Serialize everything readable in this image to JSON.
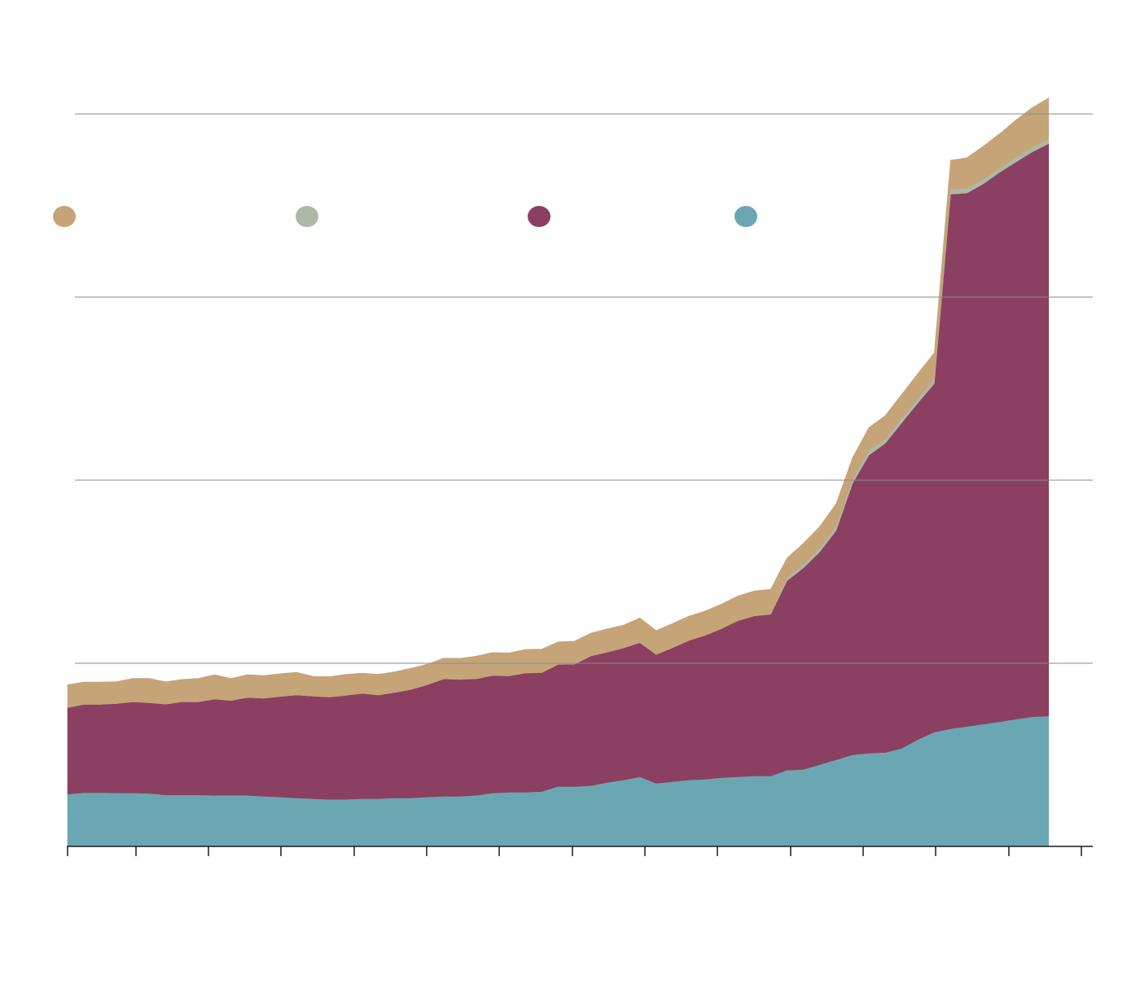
{
  "chart_data": {
    "type": "area",
    "stacked": true,
    "title": "",
    "xlabel": "",
    "ylabel": "",
    "grid": true,
    "legend_placement": "top-left",
    "x": [
      1,
      3,
      5,
      7,
      9,
      11,
      13,
      15,
      17,
      19,
      21,
      23,
      25,
      27,
      29,
      31,
      33,
      35,
      37,
      39,
      41,
      43,
      45,
      47,
      49,
      51,
      53,
      55,
      57,
      59,
      61,
      63,
      65,
      67,
      69,
      71,
      73,
      75,
      77,
      79,
      81,
      83,
      85,
      87,
      89,
      91,
      93,
      95,
      97,
      99,
      101,
      103,
      105,
      107,
      109,
      111,
      113,
      115,
      117,
      119,
      121
    ],
    "xlim": [
      1,
      125
    ],
    "ylim": [
      0,
      400
    ],
    "y_gridlines": [
      100,
      200,
      300,
      400
    ],
    "series": [
      {
        "color": "#6BA7B2",
        "values": [
          28.5,
          29.4,
          29.4,
          29.2,
          29.2,
          29.0,
          28.1,
          28.1,
          28.1,
          27.9,
          27.9,
          27.9,
          27.4,
          27.0,
          26.5,
          26.1,
          25.7,
          25.7,
          26.1,
          26.1,
          26.5,
          26.5,
          27.0,
          27.4,
          27.4,
          27.9,
          29.2,
          29.6,
          29.6,
          30.0,
          32.7,
          32.7,
          33.2,
          34.9,
          36.3,
          38.0,
          34.5,
          35.4,
          36.3,
          36.7,
          37.6,
          38.0,
          38.5,
          38.5,
          41.6,
          42.0,
          44.7,
          47.3,
          50.0,
          50.9,
          51.3,
          53.5,
          58.4,
          62.4,
          64.2,
          65.5,
          66.8,
          68.1,
          69.5,
          70.8,
          71.2
        ]
      },
      {
        "color": "#8B4061",
        "values": [
          47.3,
          48.2,
          48.2,
          48.8,
          49.8,
          49.5,
          49.6,
          50.9,
          50.9,
          52.6,
          51.8,
          53.5,
          53.5,
          54.9,
          56.2,
          56.0,
          55.9,
          56.8,
          57.5,
          56.6,
          57.6,
          59.2,
          61.3,
          64.1,
          63.8,
          63.7,
          64.2,
          63.5,
          65.1,
          64.9,
          66.7,
          66.8,
          70.8,
          71.2,
          72.1,
          73.3,
          70.3,
          73.1,
          76.2,
          78.6,
          81.4,
          85.3,
          87.4,
          88.3,
          103.5,
          110.1,
          116.2,
          125.2,
          148.2,
          162.8,
          168.8,
          177.7,
          183.8,
          190.3,
          292.0,
          291.3,
          295.0,
          300.0,
          304.3,
          308.5,
          312.6
        ]
      },
      {
        "color": "#ADB8A6",
        "values": [
          0,
          0,
          0,
          0,
          0,
          0,
          0,
          0,
          0,
          0,
          0,
          0,
          0,
          0,
          0,
          0,
          0,
          0,
          0,
          0,
          0,
          0,
          0,
          0,
          0,
          0,
          0,
          0,
          0,
          0,
          0,
          0,
          0,
          0,
          0,
          0,
          0,
          0,
          0,
          0,
          0,
          0,
          0,
          0,
          1.5,
          2.0,
          2.0,
          2.5,
          2.5,
          2.5,
          2.5,
          2.5,
          2.5,
          2.5,
          2.5,
          2.5,
          2.5,
          2.5,
          2.5,
          2.5,
          2.5
        ]
      },
      {
        "color": "#C5A478",
        "values": [
          12.5,
          12.2,
          12.2,
          12.0,
          12.8,
          13.3,
          12.2,
          12.2,
          12.8,
          13.3,
          12.0,
          12.4,
          12.4,
          12.4,
          12.4,
          10.8,
          11.1,
          11.4,
          11.0,
          11.3,
          11.3,
          11.6,
          11.2,
          11.3,
          11.5,
          12.3,
          12.5,
          12.6,
          12.9,
          12.9,
          12.3,
          12.6,
          12.5,
          12.7,
          12.5,
          13.4,
          13.1,
          13.3,
          13.3,
          13.3,
          13.4,
          13.5,
          13.6,
          13.7,
          10.9,
          11.4,
          11.8,
          12.2,
          11.5,
          12.5,
          12.6,
          13.0,
          13.6,
          14.3,
          16.0,
          16.8,
          18.1,
          18.6,
          20.4,
          21.7,
          22.4
        ]
      }
    ]
  }
}
